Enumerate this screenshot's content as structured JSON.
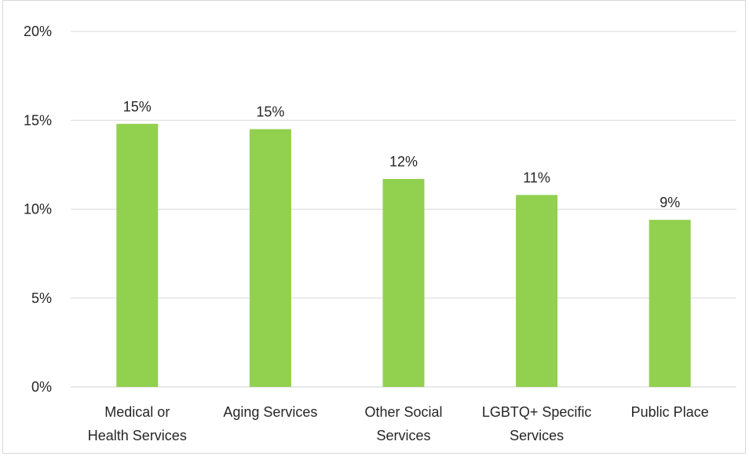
{
  "chart_data": {
    "type": "bar",
    "categories": [
      [
        "Medical or",
        "Health Services"
      ],
      [
        "Aging Services"
      ],
      [
        "Other Social",
        "Services"
      ],
      [
        "LGBTQ+ Specific",
        "Services"
      ],
      [
        "Public Place"
      ]
    ],
    "values": [
      14.8,
      14.5,
      11.7,
      10.8,
      9.4
    ],
    "data_labels": [
      "15%",
      "15%",
      "12%",
      "11%",
      "9%"
    ],
    "ylim": [
      0,
      20
    ],
    "yticks": [
      0,
      5,
      10,
      15,
      20
    ],
    "ytick_labels": [
      "0%",
      "5%",
      "10%",
      "15%",
      "20%"
    ],
    "grid": true,
    "bar_color": "#92d050",
    "title": "",
    "xlabel": "",
    "ylabel": ""
  }
}
